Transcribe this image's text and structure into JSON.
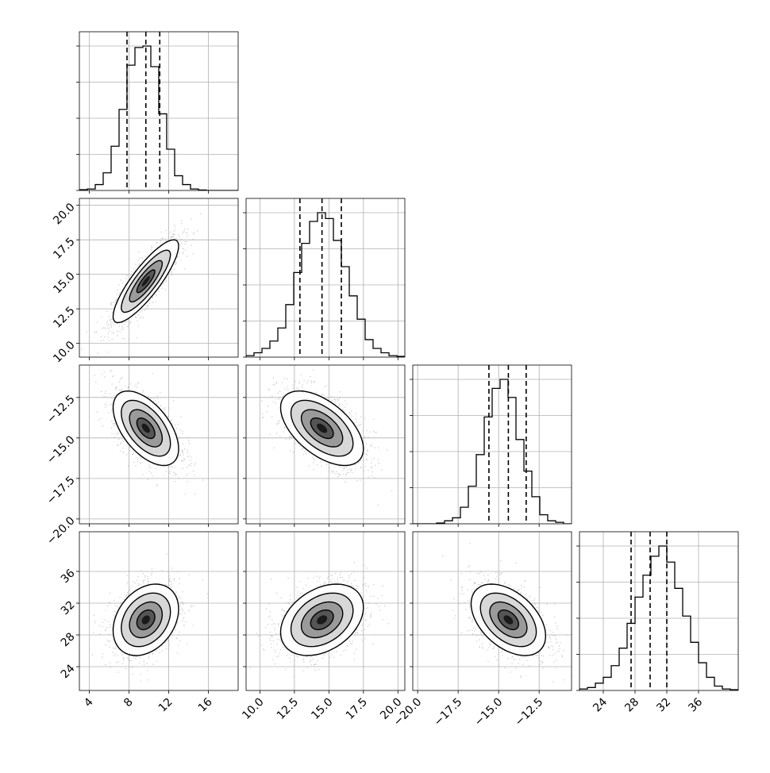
{
  "chart_data": {
    "type": "corner",
    "parameters": 4,
    "ticks": [
      [
        4,
        8,
        12,
        16
      ],
      [
        10.0,
        12.5,
        15.0,
        17.5,
        20.0
      ],
      [
        -20.0,
        -17.5,
        -15.0,
        -12.5
      ],
      [
        24,
        28,
        32,
        36
      ]
    ],
    "tick_labels": [
      [
        "4",
        "8",
        "12",
        "16"
      ],
      [
        "10.0",
        "12.5",
        "15.0",
        "17.5",
        "20.0"
      ],
      [
        "−20.0",
        "−17.5",
        "−15.0",
        "−12.5"
      ],
      [
        "24",
        "28",
        "32",
        "36"
      ]
    ],
    "axis_ranges": [
      [
        3.0,
        19.0
      ],
      [
        9.0,
        20.5
      ],
      [
        -20.3,
        -10.5
      ],
      [
        21.0,
        41.0
      ]
    ],
    "quantiles": [
      [
        7.8,
        9.7,
        11.1
      ],
      [
        12.9,
        14.5,
        15.9
      ],
      [
        -15.6,
        -14.4,
        -13.3
      ],
      [
        27.5,
        29.9,
        32.0
      ]
    ],
    "histograms": [
      {
        "range": [
          3.0,
          19.0
        ],
        "bins": 20,
        "counts": [
          0.5,
          1,
          4,
          12,
          30,
          55,
          85,
          97,
          98,
          84,
          52,
          28,
          10,
          4,
          1,
          0.3,
          0,
          0,
          0,
          0
        ]
      },
      {
        "range": [
          9.0,
          20.5
        ],
        "bins": 20,
        "counts": [
          1,
          3,
          6,
          11,
          20,
          36,
          58,
          78,
          93,
          99,
          95,
          80,
          62,
          42,
          26,
          12,
          6,
          3,
          1,
          0.5
        ]
      },
      {
        "range": [
          -20.3,
          -10.5
        ],
        "bins": 20,
        "counts": [
          0,
          0,
          0,
          0.5,
          2,
          4,
          11,
          25,
          46,
          71,
          90,
          96,
          84,
          56,
          35,
          18,
          6,
          2,
          1,
          0
        ]
      },
      {
        "range": [
          21.0,
          41.0
        ],
        "bins": 20,
        "counts": [
          1,
          2,
          5,
          9,
          17,
          29,
          46,
          64,
          79,
          92,
          99,
          88,
          70,
          51,
          33,
          19,
          9,
          3,
          1,
          0.5
        ]
      }
    ],
    "joint_correlations": {
      "1-0": 0.85,
      "2-0": -0.55,
      "2-1": -0.55,
      "3-0": 0.3,
      "3-1": 0.35,
      "3-2": -0.45
    },
    "grid": true,
    "colors": {
      "scatter": "#b0b0b0",
      "contour": "#000000",
      "density": "#000000",
      "grid": "#b0b0b0"
    }
  }
}
